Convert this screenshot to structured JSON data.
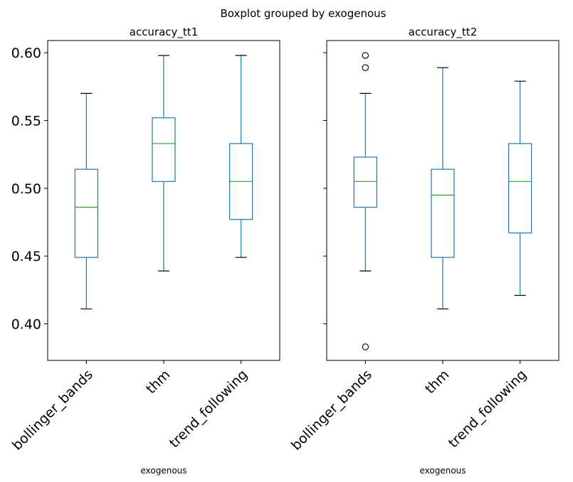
{
  "chart_data": {
    "type": "boxplot",
    "suptitle": "Boxplot grouped by exogenous",
    "ylim": [
      0.373,
      0.609
    ],
    "yticks": [
      "0.40",
      "0.45",
      "0.50",
      "0.55",
      "0.60"
    ],
    "ytick_values": [
      0.4,
      0.45,
      0.5,
      0.55,
      0.6
    ],
    "sharey": true,
    "grid": false,
    "colors": {
      "box": "#1f77b4",
      "median": "#2ca02c",
      "cap": "#000000"
    },
    "panels": [
      {
        "title": "accuracy_tt1",
        "xlabel": "exogenous",
        "categories": [
          "bollinger_bands",
          "thm",
          "trend_following"
        ],
        "boxes": [
          {
            "whislo": 0.411,
            "q1": 0.449,
            "med": 0.486,
            "q3": 0.514,
            "whishi": 0.57,
            "fliers": []
          },
          {
            "whislo": 0.439,
            "q1": 0.505,
            "med": 0.533,
            "q3": 0.552,
            "whishi": 0.598,
            "fliers": []
          },
          {
            "whislo": 0.449,
            "q1": 0.477,
            "med": 0.505,
            "q3": 0.533,
            "whishi": 0.598,
            "fliers": []
          }
        ]
      },
      {
        "title": "accuracy_tt2",
        "xlabel": "exogenous",
        "categories": [
          "bollinger_bands",
          "thm",
          "trend_following"
        ],
        "boxes": [
          {
            "whislo": 0.439,
            "q1": 0.486,
            "med": 0.505,
            "q3": 0.523,
            "whishi": 0.57,
            "fliers": [
              0.598,
              0.589,
              0.383
            ]
          },
          {
            "whislo": 0.411,
            "q1": 0.449,
            "med": 0.495,
            "q3": 0.514,
            "whishi": 0.589,
            "fliers": []
          },
          {
            "whislo": 0.421,
            "q1": 0.467,
            "med": 0.505,
            "q3": 0.533,
            "whishi": 0.579,
            "fliers": []
          }
        ]
      }
    ]
  }
}
